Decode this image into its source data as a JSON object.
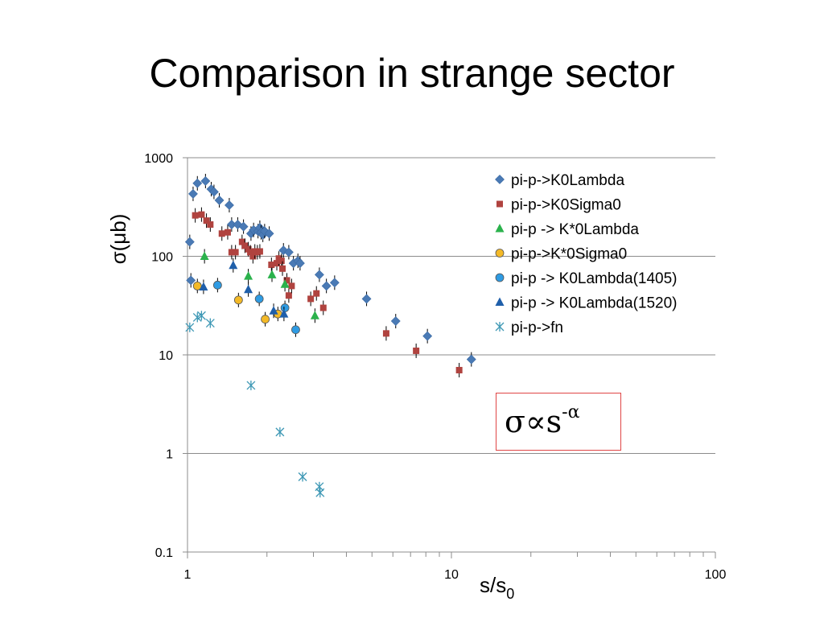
{
  "slide": {
    "title": "Comparison in strange sector"
  },
  "formula": {
    "text": "σ∝s",
    "exponent": "-α"
  },
  "chart_data": {
    "type": "scatter",
    "xscale": "log",
    "yscale": "log",
    "xlim": [
      1,
      100
    ],
    "ylim": [
      0.1,
      1000
    ],
    "xlabel": "s/s",
    "xlabel_sub": "0",
    "ylabel": "σ(μb)",
    "xticks": [
      "1",
      "10",
      "100"
    ],
    "yticks": [
      "0.1",
      "1",
      "10",
      "100",
      "1000"
    ],
    "grid": "horizontal",
    "legend": "top-right",
    "series": [
      {
        "name": "pi-p->K0Lambda",
        "marker": "diamond",
        "color": "#4a7ab5",
        "points": [
          [
            1.02,
            140
          ],
          [
            1.03,
            57
          ],
          [
            1.05,
            430
          ],
          [
            1.09,
            550
          ],
          [
            1.17,
            580
          ],
          [
            1.23,
            480
          ],
          [
            1.26,
            450
          ],
          [
            1.32,
            370
          ],
          [
            1.44,
            330
          ],
          [
            1.47,
            210
          ],
          [
            1.55,
            210
          ],
          [
            1.63,
            200
          ],
          [
            1.74,
            170
          ],
          [
            1.78,
            185
          ],
          [
            1.85,
            180
          ],
          [
            1.88,
            195
          ],
          [
            1.9,
            175
          ],
          [
            1.93,
            165
          ],
          [
            1.96,
            180
          ],
          [
            2.04,
            170
          ],
          [
            2.31,
            115
          ],
          [
            2.42,
            110
          ],
          [
            2.52,
            85
          ],
          [
            2.62,
            90
          ],
          [
            2.67,
            85
          ],
          [
            3.16,
            65
          ],
          [
            3.36,
            50
          ],
          [
            3.61,
            54
          ],
          [
            4.77,
            37
          ],
          [
            6.15,
            22
          ],
          [
            8.11,
            15.5
          ],
          [
            11.9,
            9
          ]
        ]
      },
      {
        "name": "pi-p->K0Sigma0",
        "marker": "square",
        "color": "#b0433f",
        "points": [
          [
            1.07,
            260
          ],
          [
            1.13,
            265
          ],
          [
            1.18,
            230
          ],
          [
            1.22,
            210
          ],
          [
            1.35,
            170
          ],
          [
            1.42,
            175
          ],
          [
            1.47,
            110
          ],
          [
            1.52,
            110
          ],
          [
            1.61,
            140
          ],
          [
            1.65,
            128
          ],
          [
            1.7,
            118
          ],
          [
            1.73,
            110
          ],
          [
            1.77,
            100
          ],
          [
            1.8,
            112
          ],
          [
            1.84,
            110
          ],
          [
            1.88,
            112
          ],
          [
            2.08,
            82
          ],
          [
            2.18,
            85
          ],
          [
            2.22,
            95
          ],
          [
            2.27,
            90
          ],
          [
            2.29,
            75
          ],
          [
            2.38,
            57
          ],
          [
            2.42,
            40
          ],
          [
            2.48,
            50
          ],
          [
            2.93,
            37
          ],
          [
            3.08,
            42
          ],
          [
            3.27,
            30
          ],
          [
            5.66,
            16.5
          ],
          [
            7.35,
            11
          ],
          [
            10.7,
            7
          ]
        ]
      },
      {
        "name": "pi-p -> K*0Lambda",
        "marker": "triangle",
        "color": "#2bb24c",
        "points": [
          [
            1.16,
            100
          ],
          [
            1.7,
            63
          ],
          [
            2.09,
            65
          ],
          [
            2.34,
            52
          ],
          [
            3.04,
            25
          ]
        ]
      },
      {
        "name": "pi-p->K*0Sigma0",
        "marker": "circle",
        "color": "#f3b927",
        "points": [
          [
            1.09,
            50
          ],
          [
            1.56,
            36
          ],
          [
            1.97,
            23
          ],
          [
            2.2,
            26
          ]
        ]
      },
      {
        "name": "pi-p -> K0Lambda(1405)",
        "marker": "circle",
        "color": "#2e9be3",
        "points": [
          [
            1.3,
            51
          ],
          [
            1.87,
            37
          ],
          [
            2.34,
            30
          ],
          [
            2.57,
            18
          ]
        ]
      },
      {
        "name": "pi-p -> K0Lambda(1520)",
        "marker": "triangle",
        "color": "#1f5faa",
        "points": [
          [
            1.15,
            49
          ],
          [
            1.49,
            81
          ],
          [
            1.7,
            46
          ],
          [
            2.12,
            28
          ],
          [
            2.32,
            26
          ]
        ]
      },
      {
        "name": "pi-p->fn",
        "marker": "asterisk",
        "color": "#3e98b5",
        "points": [
          [
            1.02,
            19
          ],
          [
            1.09,
            24
          ],
          [
            1.13,
            25
          ],
          [
            1.22,
            21
          ],
          [
            1.74,
            4.9
          ],
          [
            2.24,
            1.65
          ],
          [
            2.73,
            0.58
          ],
          [
            3.16,
            0.46
          ],
          [
            3.18,
            0.4
          ]
        ]
      }
    ]
  }
}
